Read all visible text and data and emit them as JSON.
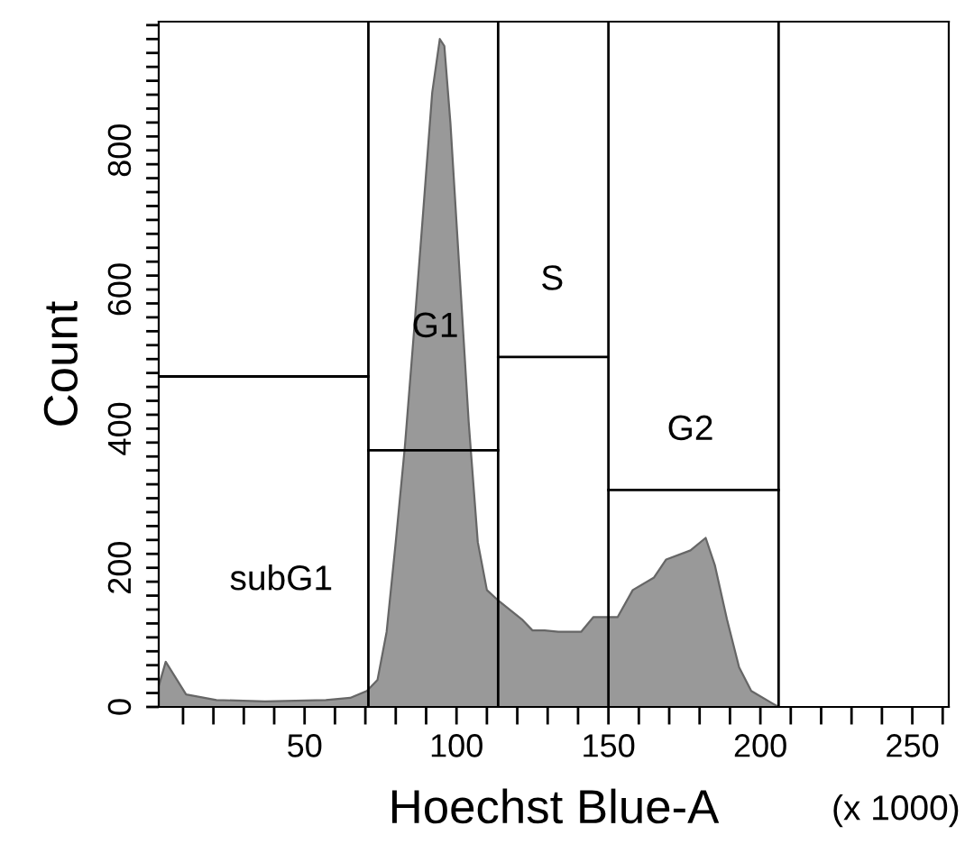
{
  "chart_data": {
    "type": "area",
    "xlabel": "Hoechst Blue-A",
    "ylabel": "Count",
    "annotations": [
      "(x 1000)",
      "subG1",
      "G1",
      "S",
      "G2"
    ],
    "xlim": [
      2,
      262
    ],
    "ylim": [
      0,
      985
    ],
    "xticks": [
      {
        "value": 10,
        "label": null
      },
      {
        "value": 20,
        "label": null
      },
      {
        "value": 30,
        "label": null
      },
      {
        "value": 40,
        "label": null
      },
      50,
      {
        "value": 60,
        "label": null
      },
      {
        "value": 70,
        "label": null
      },
      {
        "value": 80,
        "label": null
      },
      {
        "value": 90,
        "label": null
      },
      100,
      {
        "value": 110,
        "label": null
      },
      {
        "value": 120,
        "label": null
      },
      {
        "value": 130,
        "label": null
      },
      {
        "value": 140,
        "label": null
      },
      150,
      {
        "value": 160,
        "label": null
      },
      {
        "value": 170,
        "label": null
      },
      {
        "value": 180,
        "label": null
      },
      {
        "value": 190,
        "label": null
      },
      200,
      {
        "value": 210,
        "label": null
      },
      {
        "value": 220,
        "label": null
      },
      {
        "value": 230,
        "label": null
      },
      {
        "value": 240,
        "label": null
      },
      250,
      {
        "value": 260,
        "label": null
      }
    ],
    "yticks": [
      0,
      {
        "value": 20,
        "label": null
      },
      {
        "value": 40,
        "label": null
      },
      {
        "value": 60,
        "label": null
      },
      {
        "value": 80,
        "label": null
      },
      {
        "value": 100,
        "label": null
      },
      {
        "value": 120,
        "label": null
      },
      {
        "value": 140,
        "label": null
      },
      {
        "value": 160,
        "label": null
      },
      {
        "value": 180,
        "label": null
      },
      200,
      {
        "value": 220,
        "label": null
      },
      {
        "value": 240,
        "label": null
      },
      {
        "value": 260,
        "label": null
      },
      {
        "value": 280,
        "label": null
      },
      {
        "value": 300,
        "label": null
      },
      {
        "value": 320,
        "label": null
      },
      {
        "value": 340,
        "label": null
      },
      {
        "value": 360,
        "label": null
      },
      {
        "value": 380,
        "label": null
      },
      400,
      {
        "value": 420,
        "label": null
      },
      {
        "value": 440,
        "label": null
      },
      {
        "value": 460,
        "label": null
      },
      {
        "value": 480,
        "label": null
      },
      {
        "value": 500,
        "label": null
      },
      {
        "value": 520,
        "label": null
      },
      {
        "value": 540,
        "label": null
      },
      {
        "value": 560,
        "label": null
      },
      {
        "value": 580,
        "label": null
      },
      600,
      {
        "value": 620,
        "label": null
      },
      {
        "value": 640,
        "label": null
      },
      {
        "value": 660,
        "label": null
      },
      {
        "value": 680,
        "label": null
      },
      {
        "value": 700,
        "label": null
      },
      {
        "value": 720,
        "label": null
      },
      {
        "value": 740,
        "label": null
      },
      {
        "value": 760,
        "label": null
      },
      {
        "value": 780,
        "label": null
      },
      800,
      {
        "value": 820,
        "label": null
      },
      {
        "value": 840,
        "label": null
      },
      {
        "value": 860,
        "label": null
      },
      {
        "value": 880,
        "label": null
      },
      {
        "value": 900,
        "label": null
      },
      {
        "value": 920,
        "label": null
      },
      {
        "value": 940,
        "label": null
      },
      {
        "value": 960,
        "label": null
      },
      {
        "value": 980,
        "label": null
      }
    ],
    "grid": false,
    "series": [
      {
        "color": "#999999",
        "x": [
          2,
          4.3,
          11,
          21,
          37,
          57,
          65,
          70.5,
          74,
          77,
          80,
          83,
          86,
          89,
          92,
          94.5,
          96,
          98,
          101,
          104,
          107,
          110,
          114,
          121.5,
          125,
          129,
          133.5,
          141,
          145,
          153,
          158,
          165,
          169,
          177,
          182,
          185,
          189,
          193,
          197,
          204,
          206,
          262
        ],
        "values": [
          30,
          65,
          18,
          10,
          8,
          10,
          13,
          23,
          39,
          108,
          237,
          374,
          539,
          710,
          883,
          960,
          950,
          839,
          625,
          410,
          237,
          168,
          152,
          126,
          110,
          110,
          108,
          108,
          129,
          129,
          168,
          186,
          212,
          225,
          243,
          204,
          126,
          57,
          23,
          5,
          0,
          0
        ]
      },
      {
        "type": "line",
        "color": "#000000",
        "x": [
          2,
          71
        ],
        "values": [
          475,
          475
        ]
      },
      {
        "type": "line",
        "color": "#000000",
        "x": [
          71,
          113.7
        ],
        "values": [
          369,
          369
        ]
      },
      {
        "type": "line",
        "color": "#000000",
        "x": [
          113.7,
          150
        ],
        "values": [
          503,
          503
        ]
      },
      {
        "type": "line",
        "color": "#000000",
        "x": [
          150,
          206
        ],
        "values": [
          312,
          312
        ]
      }
    ],
    "ref_lines": [
      {
        "axis": "x",
        "value": 71,
        "color": "#000000"
      },
      {
        "axis": "x",
        "value": 113.7,
        "color": "#000000"
      },
      {
        "axis": "x",
        "value": 150,
        "color": "#000000"
      },
      {
        "axis": "x",
        "value": 206,
        "color": "#000000"
      }
    ]
  }
}
